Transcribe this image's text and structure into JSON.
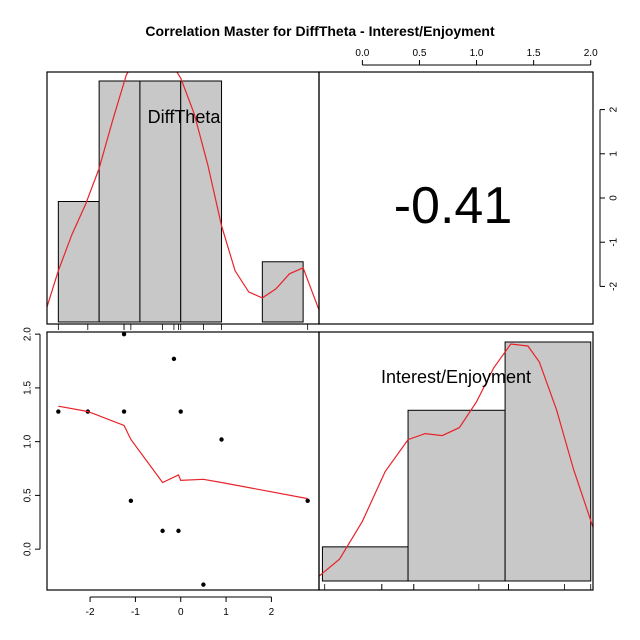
{
  "chart_data": {
    "type": "pairs",
    "title": "Correlation Master for DiffTheta - Interest/Enjoyment",
    "variables": [
      "DiffTheta",
      "Interest/Enjoyment"
    ],
    "correlation": "-0.41",
    "diff_theta": {
      "range": [
        -2.95,
        3.05
      ],
      "ticks": [
        "-2",
        "-1",
        "0",
        "1",
        "2"
      ],
      "tick_values": [
        -2,
        -1,
        0,
        1,
        2
      ],
      "histogram": {
        "breaks": [
          -2.7,
          -1.8,
          -0.9,
          0.0,
          0.9,
          1.8,
          2.7
        ],
        "counts": [
          2,
          4,
          4,
          4,
          0,
          1
        ]
      },
      "right_axis_ticks": [
        "2",
        "1",
        "0",
        "-1",
        "-2"
      ],
      "right_axis_values": [
        2,
        1,
        0,
        -1,
        -2
      ]
    },
    "interest_enjoyment": {
      "range": [
        -0.38,
        2.02
      ],
      "ticks": [
        "0.0",
        "0.5",
        "1.0",
        "1.5",
        "2.0"
      ],
      "tick_values": [
        0.0,
        0.5,
        1.0,
        1.5,
        2.0
      ],
      "histogram": {
        "breaks": [
          -0.35,
          0.4,
          1.25,
          2.0
        ],
        "counts": [
          1,
          5,
          7
        ]
      }
    },
    "scatter": {
      "x": [
        -2.7,
        -2.05,
        -1.25,
        -1.25,
        -1.1,
        -0.4,
        -0.15,
        -0.05,
        0.0,
        0.5,
        0.9,
        2.8
      ],
      "y": [
        1.28,
        1.28,
        2.0,
        1.28,
        0.45,
        0.17,
        1.77,
        0.17,
        1.28,
        -0.33,
        1.02,
        0.45
      ]
    },
    "loess": {
      "x": [
        -2.7,
        -2.05,
        -1.25,
        -1.1,
        -0.4,
        -0.05,
        0.0,
        0.5,
        0.9,
        2.8
      ],
      "y": [
        1.33,
        1.28,
        1.15,
        1.02,
        0.62,
        0.69,
        0.64,
        0.65,
        0.62,
        0.47
      ]
    },
    "density_diff_theta": {
      "x": [
        -2.95,
        -2.7,
        -2.4,
        -2.1,
        -1.8,
        -1.5,
        -1.2,
        -0.9,
        -0.6,
        -0.3,
        0.0,
        0.3,
        0.6,
        0.9,
        1.2,
        1.5,
        1.8,
        2.1,
        2.4,
        2.7,
        3.05
      ],
      "y": [
        0.25,
        0.85,
        1.45,
        1.95,
        2.55,
        3.35,
        4.1,
        4.5,
        4.55,
        4.4,
        4.05,
        3.45,
        2.6,
        1.6,
        0.85,
        0.5,
        0.4,
        0.55,
        0.8,
        0.9,
        0.2
      ]
    },
    "density_interest_enjoyment": {
      "x": [
        -0.38,
        -0.2,
        0.0,
        0.2,
        0.4,
        0.55,
        0.7,
        0.85,
        1.0,
        1.15,
        1.3,
        1.45,
        1.55,
        1.7,
        1.85,
        2.02
      ],
      "y": [
        0.12,
        0.55,
        1.5,
        2.75,
        3.55,
        3.7,
        3.65,
        3.85,
        4.5,
        5.35,
        5.95,
        5.9,
        5.5,
        4.3,
        2.8,
        1.35
      ]
    },
    "grid": false
  }
}
